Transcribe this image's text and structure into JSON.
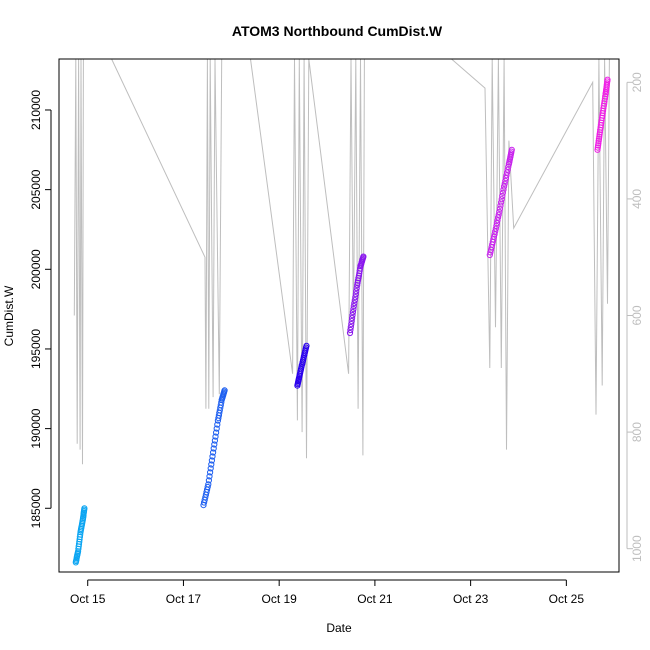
{
  "chart_data": {
    "type": "scatter",
    "title": "ATOM3 Northbound CumDist.W",
    "xlabel": "Date",
    "ylabel": "CumDist.W",
    "x_ticks": [
      "Oct 15",
      "Oct 17",
      "Oct 19",
      "Oct 21",
      "Oct 23",
      "Oct 25"
    ],
    "x_tick_days": [
      15,
      17,
      19,
      21,
      23,
      25
    ],
    "xlim": [
      14.4,
      26.1
    ],
    "y_ticks": [
      185000,
      190000,
      195000,
      200000,
      205000,
      210000
    ],
    "ylim": [
      181000,
      213200
    ],
    "y2_ticks": [
      200,
      400,
      600,
      800,
      1000
    ],
    "y2lim": [
      1040,
      160
    ],
    "grid": false,
    "colors": {
      "point_series": [
        "#0ba5f2",
        "#1e5ff0",
        "#2a00ee",
        "#8a16ee",
        "#c821ee",
        "#f01fe6"
      ],
      "gray_line": "#bebebe",
      "axis": "#000000"
    },
    "series": [
      {
        "points": [
          [
            14.75,
            181600
          ],
          [
            14.8,
            182300
          ],
          [
            14.85,
            183500
          ],
          [
            14.9,
            184300
          ],
          [
            14.93,
            185000
          ]
        ]
      },
      {
        "points": [
          [
            17.42,
            185200
          ],
          [
            17.52,
            186500
          ],
          [
            17.62,
            188500
          ],
          [
            17.72,
            190500
          ],
          [
            17.8,
            191800
          ],
          [
            17.86,
            192400
          ]
        ]
      },
      {
        "points": [
          [
            19.38,
            192700
          ],
          [
            19.43,
            193400
          ],
          [
            19.5,
            194300
          ],
          [
            19.57,
            195200
          ]
        ]
      },
      {
        "points": [
          [
            20.48,
            196000
          ],
          [
            20.55,
            197500
          ],
          [
            20.63,
            199000
          ],
          [
            20.7,
            200200
          ],
          [
            20.76,
            200800
          ]
        ]
      },
      {
        "points": [
          [
            23.4,
            200900
          ],
          [
            23.5,
            202200
          ],
          [
            23.6,
            203600
          ],
          [
            23.7,
            205200
          ],
          [
            23.8,
            206600
          ],
          [
            23.86,
            207500
          ]
        ]
      },
      {
        "points": [
          [
            25.65,
            207500
          ],
          [
            25.7,
            208600
          ],
          [
            25.76,
            209800
          ],
          [
            25.82,
            211000
          ],
          [
            25.86,
            211900
          ]
        ]
      }
    ],
    "gray_series": {
      "axis": "right",
      "points": [
        [
          14.72,
          600
        ],
        [
          14.75,
          160
        ],
        [
          14.78,
          820
        ],
        [
          14.81,
          160
        ],
        [
          14.84,
          830
        ],
        [
          14.86,
          160
        ],
        [
          14.89,
          855
        ],
        [
          14.91,
          160
        ],
        [
          15.5,
          160
        ],
        [
          17.45,
          500
        ],
        [
          17.47,
          760
        ],
        [
          17.5,
          160
        ],
        [
          17.53,
          760
        ],
        [
          17.56,
          160
        ],
        [
          17.62,
          740
        ],
        [
          17.66,
          160
        ],
        [
          17.75,
          735
        ],
        [
          17.8,
          160
        ],
        [
          18.4,
          160
        ],
        [
          19.28,
          700
        ],
        [
          19.32,
          160
        ],
        [
          19.38,
          780
        ],
        [
          19.42,
          160
        ],
        [
          19.48,
          800
        ],
        [
          19.52,
          160
        ],
        [
          19.57,
          845
        ],
        [
          19.62,
          160
        ],
        [
          20.45,
          700
        ],
        [
          20.5,
          160
        ],
        [
          20.55,
          620
        ],
        [
          20.6,
          160
        ],
        [
          20.65,
          760
        ],
        [
          20.7,
          160
        ],
        [
          20.75,
          840
        ],
        [
          20.78,
          160
        ],
        [
          22.6,
          160
        ],
        [
          23.3,
          210
        ],
        [
          23.4,
          690
        ],
        [
          23.45,
          160
        ],
        [
          23.52,
          620
        ],
        [
          23.58,
          160
        ],
        [
          23.64,
          690
        ],
        [
          23.7,
          160
        ],
        [
          23.75,
          830
        ],
        [
          23.8,
          300
        ],
        [
          23.9,
          450
        ],
        [
          25.55,
          200
        ],
        [
          25.62,
          770
        ],
        [
          25.68,
          160
        ],
        [
          25.75,
          720
        ],
        [
          25.8,
          160
        ],
        [
          25.86,
          580
        ],
        [
          25.9,
          160
        ]
      ]
    }
  }
}
